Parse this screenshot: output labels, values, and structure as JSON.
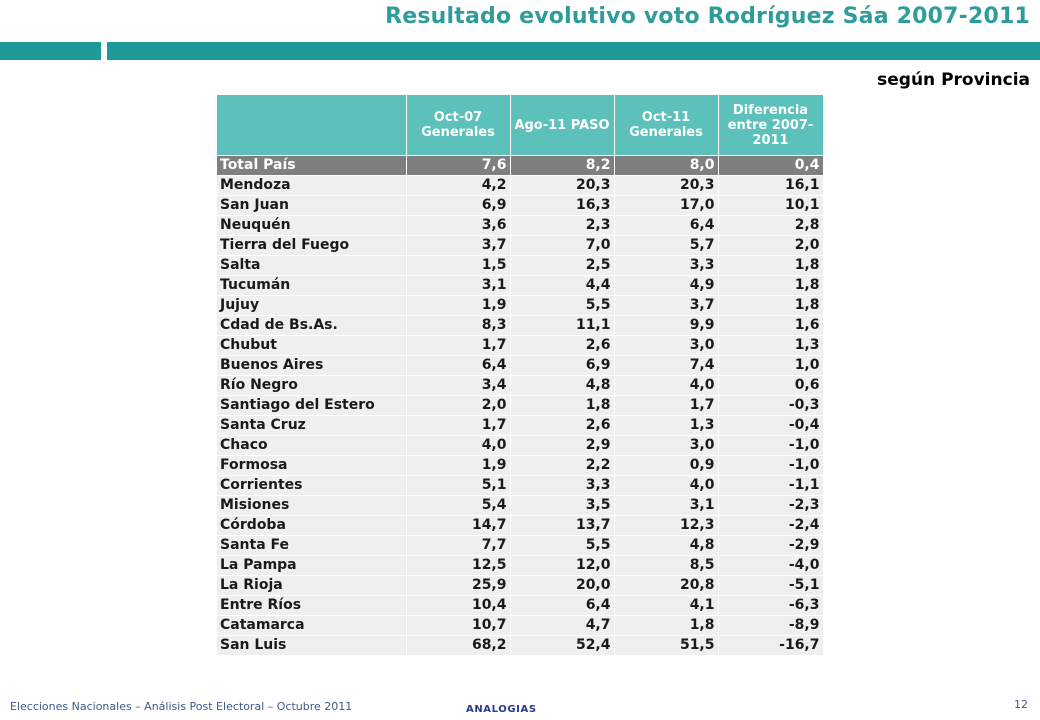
{
  "slide": {
    "title": "Resultado evolutivo voto  Rodríguez Sáa 2007-2011",
    "subtitle": "según Provincia",
    "footer_text": "Elecciones Nacionales – Análisis Post Electoral – Octubre 2011",
    "logo_text": "ANALOGIAS",
    "page_number": "12",
    "accent_color": "#1e9a9a",
    "header_color": "#5cc0bb"
  },
  "table": {
    "headers": [
      "",
      "Oct-07 Generales",
      "Ago-11 PASO",
      "Oct-11 Generales",
      "Diferencia entre 2007-2011"
    ],
    "total": [
      "Total País",
      "7,6",
      "8,2",
      "8,0",
      "0,4"
    ],
    "rows": [
      [
        "Mendoza",
        "4,2",
        "20,3",
        "20,3",
        "16,1"
      ],
      [
        "San Juan",
        "6,9",
        "16,3",
        "17,0",
        "10,1"
      ],
      [
        "Neuquén",
        "3,6",
        "2,3",
        "6,4",
        "2,8"
      ],
      [
        "Tierra del Fuego",
        "3,7",
        "7,0",
        "5,7",
        "2,0"
      ],
      [
        "Salta",
        "1,5",
        "2,5",
        "3,3",
        "1,8"
      ],
      [
        "Tucumán",
        "3,1",
        "4,4",
        "4,9",
        "1,8"
      ],
      [
        "Jujuy",
        "1,9",
        "5,5",
        "3,7",
        "1,8"
      ],
      [
        "Cdad de Bs.As.",
        "8,3",
        "11,1",
        "9,9",
        "1,6"
      ],
      [
        "Chubut",
        "1,7",
        "2,6",
        "3,0",
        "1,3"
      ],
      [
        "Buenos Aires",
        "6,4",
        "6,9",
        "7,4",
        "1,0"
      ],
      [
        "Río Negro",
        "3,4",
        "4,8",
        "4,0",
        "0,6"
      ],
      [
        "Santiago del Estero",
        "2,0",
        "1,8",
        "1,7",
        "-0,3"
      ],
      [
        "Santa Cruz",
        "1,7",
        "2,6",
        "1,3",
        "-0,4"
      ],
      [
        "Chaco",
        "4,0",
        "2,9",
        "3,0",
        "-1,0"
      ],
      [
        "Formosa",
        "1,9",
        "2,2",
        "0,9",
        "-1,0"
      ],
      [
        "Corrientes",
        "5,1",
        "3,3",
        "4,0",
        "-1,1"
      ],
      [
        "Misiones",
        "5,4",
        "3,5",
        "3,1",
        "-2,3"
      ],
      [
        "Córdoba",
        "14,7",
        "13,7",
        "12,3",
        "-2,4"
      ],
      [
        "Santa Fe",
        "7,7",
        "5,5",
        "4,8",
        "-2,9"
      ],
      [
        "La Pampa",
        "12,5",
        "12,0",
        "8,5",
        "-4,0"
      ],
      [
        "La Rioja",
        "25,9",
        "20,0",
        "20,8",
        "-5,1"
      ],
      [
        "Entre Ríos",
        "10,4",
        "6,4",
        "4,1",
        "-6,3"
      ],
      [
        "Catamarca",
        "10,7",
        "4,7",
        "1,8",
        "-8,9"
      ],
      [
        "San Luis",
        "68,2",
        "52,4",
        "51,5",
        "-16,7"
      ]
    ]
  }
}
